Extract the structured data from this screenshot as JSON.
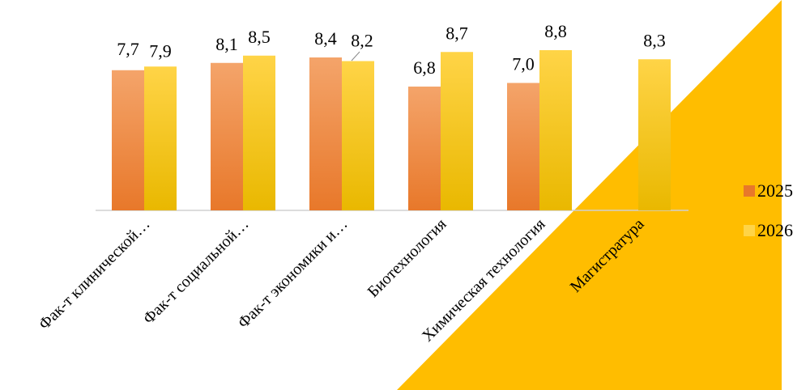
{
  "chart_data": {
    "type": "bar",
    "title": "",
    "categories": [
      "Фак-т клинической…",
      "Фак-т социальной…",
      "Фак-т экономики и…",
      "Биотехнология",
      "Химическая технология",
      "Магистратура"
    ],
    "series": [
      {
        "name": "2025",
        "values": [
          7.7,
          8.1,
          8.4,
          6.8,
          7.0,
          null
        ],
        "labels": [
          "7,7",
          "8,1",
          "8,4",
          "6,8",
          "7,0",
          ""
        ]
      },
      {
        "name": "2026",
        "values": [
          7.9,
          8.5,
          8.2,
          8.7,
          8.8,
          8.3
        ],
        "labels": [
          "7,9",
          "8,5",
          "8,2",
          "8,7",
          "8,8",
          "8,3"
        ]
      }
    ],
    "ylim": [
      0,
      9.0
    ],
    "grid": false,
    "legend": "right",
    "colors": {
      "2025_top": "#F4A46A",
      "2025_bottom": "#E8782A",
      "2026_top": "#FFD447",
      "2026_bottom": "#E9B800",
      "background_triangle": "#FFBD00"
    }
  }
}
